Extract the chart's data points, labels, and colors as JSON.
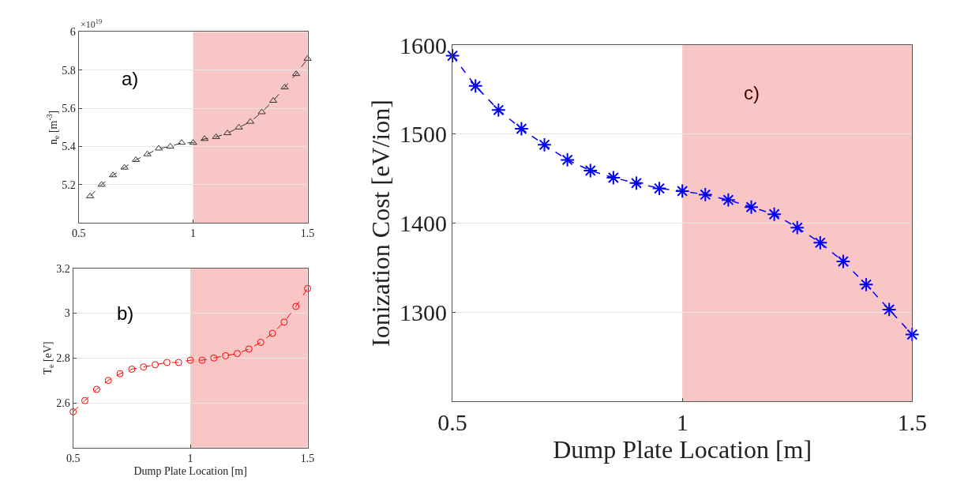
{
  "chart_data": [
    {
      "type": "line",
      "ylabel": "n$_{e}$ [m$^{-3}$]",
      "annotations": [
        "a)",
        "×10$^{19}$"
      ],
      "x": [
        0.55,
        0.6,
        0.65,
        0.7,
        0.75,
        0.8,
        0.85,
        0.9,
        0.95,
        1.0,
        1.05,
        1.1,
        1.15,
        1.2,
        1.25,
        1.3,
        1.35,
        1.4,
        1.45,
        1.5
      ],
      "series": [
        {
          "color": "#333333",
          "values": [
            5.14,
            5.2,
            5.25,
            5.29,
            5.33,
            5.36,
            5.39,
            5.4,
            5.42,
            5.42,
            5.44,
            5.45,
            5.47,
            5.5,
            5.53,
            5.58,
            5.64,
            5.71,
            5.78,
            5.86
          ]
        }
      ],
      "xlim": [
        0.5,
        1.5
      ],
      "xticks": [
        0.5,
        1,
        1.5
      ],
      "ylim": [
        5.0,
        6.0
      ],
      "yticks": [
        5.2,
        5.4,
        5.6,
        5.8,
        6
      ],
      "bands": [
        {
          "axis": "x",
          "from": 1,
          "to": 1.5,
          "color": "#f8c0c0"
        }
      ],
      "grid": "y",
      "marker": "triangle",
      "line_style": "dashed"
    },
    {
      "type": "line",
      "xlabel": "Dump Plate Location [m]",
      "ylabel": "T$_{e}$ [eV]",
      "annotations": [
        "b)"
      ],
      "x": [
        0.5,
        0.55,
        0.6,
        0.65,
        0.7,
        0.75,
        0.8,
        0.85,
        0.9,
        0.95,
        1.0,
        1.05,
        1.1,
        1.15,
        1.2,
        1.25,
        1.3,
        1.35,
        1.4,
        1.45,
        1.5
      ],
      "series": [
        {
          "color": "#ff0000",
          "values": [
            2.56,
            2.61,
            2.66,
            2.7,
            2.73,
            2.75,
            2.76,
            2.77,
            2.78,
            2.78,
            2.79,
            2.79,
            2.8,
            2.81,
            2.82,
            2.84,
            2.87,
            2.91,
            2.96,
            3.03,
            3.11
          ]
        }
      ],
      "xlim": [
        0.5,
        1.5
      ],
      "xticks": [
        0.5,
        1,
        1.5
      ],
      "ylim": [
        2.4,
        3.2
      ],
      "yticks": [
        2.6,
        2.8,
        3,
        3.2
      ],
      "bands": [
        {
          "axis": "x",
          "from": 1,
          "to": 1.5,
          "color": "#f8c0c0"
        }
      ],
      "grid": "y",
      "marker": "circle",
      "line_style": "dashed"
    },
    {
      "type": "line",
      "xlabel": "Dump Plate Location [m]",
      "ylabel": "Ionization Cost [eV/ion]",
      "annotations": [
        "c)"
      ],
      "x": [
        0.5,
        0.55,
        0.6,
        0.65,
        0.7,
        0.75,
        0.8,
        0.85,
        0.9,
        0.95,
        1.0,
        1.05,
        1.1,
        1.15,
        1.2,
        1.25,
        1.3,
        1.35,
        1.4,
        1.45,
        1.5
      ],
      "series": [
        {
          "color": "#0000ff",
          "values": [
            1588,
            1554,
            1527,
            1506,
            1488,
            1471,
            1459,
            1451,
            1445,
            1439,
            1436,
            1432,
            1426,
            1418,
            1410,
            1395,
            1378,
            1357,
            1331,
            1303,
            1275
          ]
        }
      ],
      "xlim": [
        0.5,
        1.5
      ],
      "xticks": [
        0.5,
        1,
        1.5
      ],
      "ylim": [
        1200,
        1600
      ],
      "yticks": [
        1300,
        1400,
        1500,
        1600
      ],
      "bands": [
        {
          "axis": "x",
          "from": 1,
          "to": 1.5,
          "color": "#f8c0c0"
        }
      ],
      "grid": "y",
      "marker": "cross",
      "line_style": "dashed"
    }
  ]
}
